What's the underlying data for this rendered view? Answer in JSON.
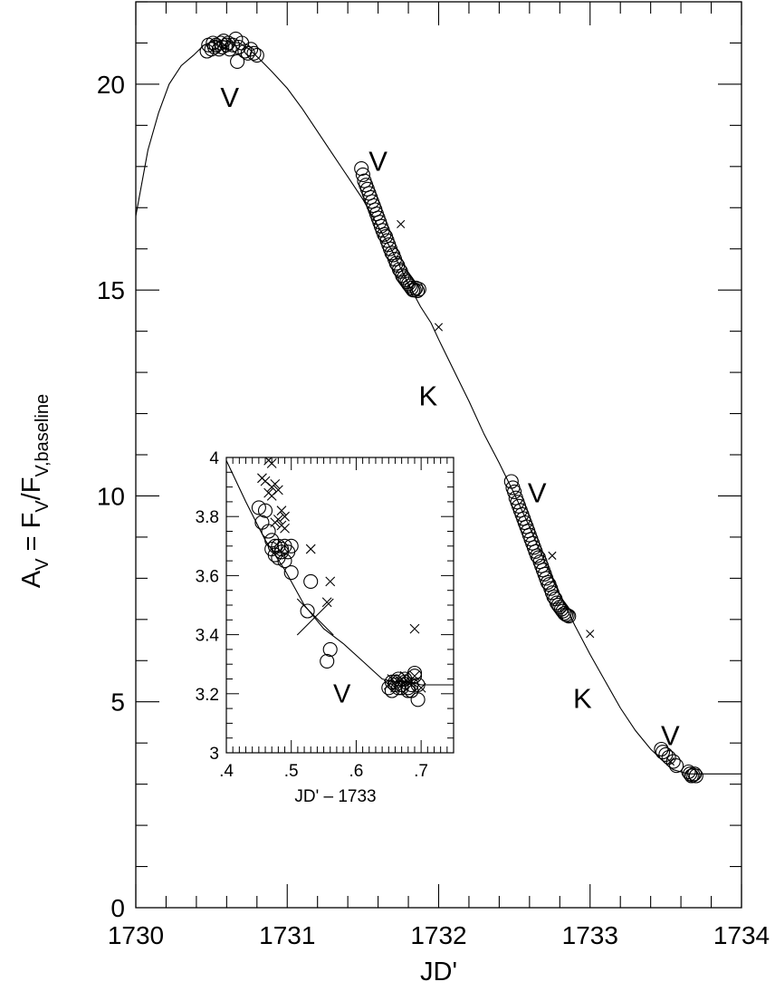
{
  "chart_data": [
    {
      "type": "scatter",
      "xlabel": "JD'",
      "ylabel_parts": {
        "main": "A",
        "sub1": "V",
        "eq": " = F",
        "sub2": "V",
        "mid": "/F",
        "sub3": "V,baseline"
      },
      "xlim": [
        1730,
        1734
      ],
      "ylim": [
        0,
        22
      ],
      "x_ticks": [
        "1730",
        "1731",
        "1732",
        "1733",
        "1734"
      ],
      "y_ticks": [
        "0",
        "5",
        "10",
        "15",
        "20"
      ],
      "model_curve": {
        "x": [
          1730.0,
          1730.08,
          1730.15,
          1730.22,
          1730.3,
          1730.38,
          1730.45,
          1730.52,
          1730.6,
          1730.68,
          1730.75,
          1730.82,
          1730.9,
          1731.0,
          1731.1,
          1731.2,
          1731.3,
          1731.4,
          1731.5,
          1731.6,
          1731.7,
          1731.8,
          1731.88,
          1731.95,
          1732.0,
          1732.1,
          1732.2,
          1732.3,
          1732.4,
          1732.5,
          1732.6,
          1732.7,
          1732.8,
          1732.9,
          1733.0,
          1733.1,
          1733.2,
          1733.3,
          1733.4,
          1733.5,
          1733.55,
          1733.6,
          1733.65,
          1733.7,
          1734.0
        ],
        "y": [
          16.8,
          18.4,
          19.3,
          20.0,
          20.45,
          20.7,
          20.95,
          21.05,
          21.05,
          21.0,
          20.85,
          20.6,
          20.3,
          19.9,
          19.4,
          18.85,
          18.3,
          17.75,
          17.2,
          16.55,
          15.9,
          15.15,
          14.6,
          14.2,
          13.8,
          13.05,
          12.3,
          11.5,
          10.8,
          10.05,
          9.25,
          8.4,
          7.6,
          6.85,
          6.15,
          5.5,
          4.85,
          4.3,
          3.85,
          3.5,
          3.35,
          3.3,
          3.25,
          3.25,
          3.25
        ]
      },
      "series": [
        {
          "marker": "circle",
          "x": [
            1730.47,
            1730.48,
            1730.5,
            1730.51,
            1730.52,
            1730.53,
            1730.55,
            1730.56,
            1730.57,
            1730.58,
            1730.6,
            1730.61,
            1730.62,
            1730.64,
            1730.66,
            1730.68,
            1730.7,
            1730.72,
            1730.74,
            1730.76,
            1730.78,
            1730.8,
            1730.67,
            1731.49,
            1731.5,
            1731.51,
            1731.52,
            1731.53,
            1731.54,
            1731.55,
            1731.56,
            1731.57,
            1731.58,
            1731.59,
            1731.6,
            1731.61,
            1731.62,
            1731.63,
            1731.64,
            1731.65,
            1731.66,
            1731.67,
            1731.68,
            1731.69,
            1731.7,
            1731.71,
            1731.72,
            1731.73,
            1731.74,
            1731.75,
            1731.76,
            1731.77,
            1731.78,
            1731.79,
            1731.8,
            1731.81,
            1731.82,
            1731.83,
            1731.84,
            1731.85,
            1731.86,
            1731.87,
            1732.48,
            1732.49,
            1732.5,
            1732.51,
            1732.52,
            1732.53,
            1732.54,
            1732.55,
            1732.56,
            1732.57,
            1732.58,
            1732.59,
            1732.6,
            1732.61,
            1732.62,
            1732.63,
            1732.64,
            1732.65,
            1732.66,
            1732.67,
            1732.68,
            1732.69,
            1732.7,
            1732.71,
            1732.72,
            1732.73,
            1732.74,
            1732.75,
            1732.76,
            1732.77,
            1732.78,
            1732.79,
            1732.8,
            1732.81,
            1732.82,
            1732.83,
            1732.84,
            1732.85,
            1732.86,
            1733.47,
            1733.48,
            1733.5,
            1733.52,
            1733.55,
            1733.57,
            1733.65,
            1733.66,
            1733.67,
            1733.68,
            1733.69,
            1733.7
          ],
          "y": [
            20.8,
            20.95,
            20.85,
            21.0,
            20.9,
            20.95,
            20.85,
            21.0,
            20.9,
            21.05,
            20.95,
            21.0,
            20.85,
            20.95,
            21.1,
            20.9,
            21.0,
            20.8,
            20.75,
            20.85,
            20.75,
            20.7,
            20.55,
            17.95,
            17.8,
            17.65,
            17.55,
            17.45,
            17.35,
            17.25,
            17.15,
            17.05,
            16.95,
            16.85,
            16.75,
            16.65,
            16.55,
            16.45,
            16.35,
            16.3,
            16.2,
            16.1,
            16.0,
            15.9,
            15.85,
            15.75,
            15.65,
            15.6,
            15.5,
            15.45,
            15.35,
            15.3,
            15.25,
            15.2,
            15.15,
            15.1,
            15.05,
            15.0,
            15.0,
            15.05,
            14.98,
            15.02,
            10.35,
            10.2,
            10.1,
            9.95,
            9.85,
            9.75,
            9.65,
            9.55,
            9.45,
            9.35,
            9.25,
            9.15,
            9.05,
            8.95,
            8.85,
            8.75,
            8.65,
            8.55,
            8.5,
            8.4,
            8.3,
            8.2,
            8.1,
            8.0,
            7.9,
            7.85,
            7.75,
            7.65,
            7.55,
            7.5,
            7.4,
            7.35,
            7.3,
            7.25,
            7.2,
            7.15,
            7.12,
            7.1,
            7.08,
            3.85,
            3.78,
            3.72,
            3.65,
            3.55,
            3.45,
            3.3,
            3.25,
            3.2,
            3.22,
            3.25,
            3.2
          ]
        }
      ],
      "special_markers": [
        {
          "x": 1730.6,
          "y": 20.9,
          "size": 1.4
        },
        {
          "x": 1731.75,
          "y": 16.6,
          "size": 2.6
        },
        {
          "x": 1732.0,
          "y": 14.1,
          "size": 2.6
        },
        {
          "x": 1732.75,
          "y": 8.55,
          "size": 2.6
        },
        {
          "x": 1733.0,
          "y": 6.65,
          "size": 2.6
        },
        {
          "x": 1733.53,
          "y": 3.55,
          "size": 2.6
        }
      ],
      "annotations": [
        {
          "text": "V",
          "x": 1730.62,
          "y": 19.45
        },
        {
          "text": "V",
          "x": 1731.6,
          "y": 17.9
        },
        {
          "text": "K",
          "x": 1731.93,
          "y": 12.2
        },
        {
          "text": "V",
          "x": 1732.65,
          "y": 9.85
        },
        {
          "text": "K",
          "x": 1732.95,
          "y": 4.85
        },
        {
          "text": "V",
          "x": 1733.53,
          "y": 3.95
        }
      ]
    },
    {
      "type": "scatter",
      "xlabel": "JD' – 1733",
      "xlim": [
        0.4,
        0.75
      ],
      "ylim": [
        3,
        4
      ],
      "x_ticks": [
        ".4",
        ".5",
        ".6",
        ".7"
      ],
      "y_ticks": [
        "3",
        "3.2",
        "3.4",
        "3.6",
        "3.8",
        "4"
      ],
      "model_curve": {
        "x": [
          0.4,
          0.43,
          0.46,
          0.49,
          0.52,
          0.55,
          0.58,
          0.61,
          0.64,
          0.66,
          0.68,
          0.7,
          0.75
        ],
        "y": [
          3.99,
          3.85,
          3.72,
          3.62,
          3.5,
          3.42,
          3.37,
          3.31,
          3.25,
          3.24,
          3.24,
          3.23,
          3.23
        ]
      },
      "series": [
        {
          "marker": "circle",
          "x": [
            0.45,
            0.46,
            0.455,
            0.465,
            0.47,
            0.475,
            0.48,
            0.485,
            0.49,
            0.495,
            0.5,
            0.47,
            0.48,
            0.49,
            0.475,
            0.485,
            0.5,
            0.53,
            0.525,
            0.56,
            0.555,
            0.65,
            0.655,
            0.66,
            0.665,
            0.67,
            0.675,
            0.68,
            0.685,
            0.69,
            0.695,
            0.66,
            0.67,
            0.68,
            0.69,
            0.655,
            0.665,
            0.675,
            0.685,
            0.695
          ],
          "y": [
            3.83,
            3.82,
            3.78,
            3.75,
            3.72,
            3.7,
            3.7,
            3.69,
            3.7,
            3.68,
            3.61,
            3.69,
            3.66,
            3.65,
            3.67,
            3.68,
            3.7,
            3.58,
            3.48,
            3.35,
            3.31,
            3.22,
            3.21,
            3.23,
            3.25,
            3.22,
            3.24,
            3.21,
            3.23,
            3.27,
            3.18,
            3.24,
            3.23,
            3.22,
            3.26,
            3.24,
            3.22,
            3.25,
            3.21,
            3.23
          ]
        },
        {
          "marker": "x",
          "x": [
            0.465,
            0.47,
            0.455,
            0.46,
            0.47,
            0.475,
            0.465,
            0.48,
            0.47,
            0.485,
            0.48,
            0.49,
            0.475,
            0.485,
            0.49,
            0.53,
            0.56,
            0.555,
            0.69,
            0.655,
            0.665,
            0.675,
            0.685,
            0.66,
            0.67,
            0.68,
            0.69,
            0.7,
            0.65
          ],
          "y": [
            3.99,
            3.98,
            3.93,
            3.92,
            3.9,
            3.91,
            3.88,
            3.89,
            3.87,
            3.82,
            3.79,
            3.8,
            3.78,
            3.77,
            3.76,
            3.69,
            3.58,
            3.51,
            3.42,
            3.25,
            3.24,
            3.26,
            3.23,
            3.22,
            3.25,
            3.24,
            3.26,
            3.22,
            3.23
          ]
        }
      ],
      "special_markers": [
        {
          "x": 0.537,
          "y": 3.46,
          "size": 0.12
        }
      ],
      "annotations": [
        {
          "text": "V",
          "x": 0.578,
          "y": 3.17
        }
      ]
    }
  ]
}
